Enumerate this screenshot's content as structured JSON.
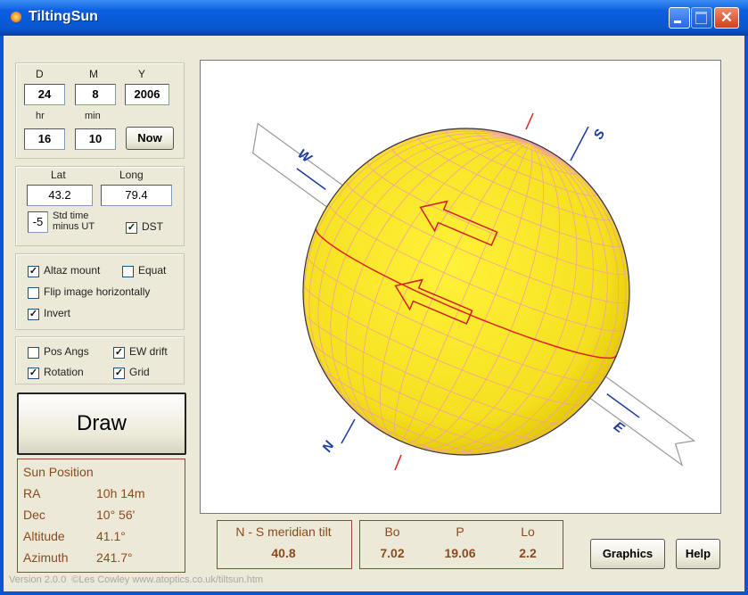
{
  "window": {
    "title": "TiltingSun"
  },
  "date": {
    "labels": [
      "D",
      "M",
      "Y"
    ],
    "values": [
      "24",
      "8",
      "2006"
    ],
    "time_labels": [
      "hr",
      "min"
    ],
    "time_values": [
      "16",
      "10"
    ],
    "now_button": "Now"
  },
  "location": {
    "lat_label": "Lat",
    "long_label": "Long",
    "lat": "43.2",
    "long": "79.4",
    "utc_offset": "-5",
    "utc_offset_label": [
      "Std time",
      "minus UT"
    ],
    "dst": {
      "label": "DST",
      "checked": true
    }
  },
  "options": [
    {
      "label": "Altaz mount",
      "checked": true
    },
    {
      "label": "Equat",
      "checked": false
    },
    {
      "label": "Flip image horizontally",
      "checked": false
    },
    {
      "label": "Invert",
      "checked": true
    }
  ],
  "display": [
    {
      "label": "Pos Angs",
      "checked": false
    },
    {
      "label": "EW drift",
      "checked": true
    },
    {
      "label": "Rotation",
      "checked": true
    },
    {
      "label": "Grid",
      "checked": true
    }
  ],
  "draw_button": "Draw",
  "sun_position": {
    "title": "Sun Position",
    "rows": [
      [
        "RA",
        "10h 14m"
      ],
      [
        "Dec",
        "10° 56'"
      ],
      [
        "Altitude",
        "41.1°"
      ],
      [
        "Azimuth",
        "241.7°"
      ]
    ]
  },
  "canvas": {
    "directions": [
      "W",
      "S",
      "E",
      "N"
    ]
  },
  "tilt": {
    "label": "N - S meridian tilt",
    "value": "40.8"
  },
  "angles": [
    {
      "label": "Bo",
      "value": "7.02"
    },
    {
      "label": "P",
      "value": "19.06"
    },
    {
      "label": "Lo",
      "value": "2.2"
    }
  ],
  "buttons": [
    "Graphics",
    "Help"
  ],
  "footer": "Version 2.0.0  ©Les Cowley www.atoptics.co.uk/tiltsun.htm"
}
